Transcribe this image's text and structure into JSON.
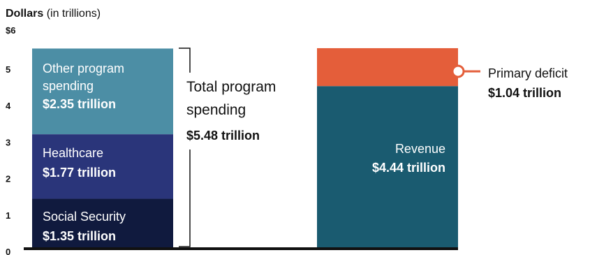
{
  "chart_data": {
    "type": "bar",
    "stacked": true,
    "y_axis": {
      "title_bold": "Dollars",
      "title_rest": " (in trillions)",
      "ticks": [
        {
          "value": 0,
          "label": "0"
        },
        {
          "value": 1,
          "label": "1"
        },
        {
          "value": 2,
          "label": "2"
        },
        {
          "value": 3,
          "label": "3"
        },
        {
          "value": 4,
          "label": "4"
        },
        {
          "value": 5,
          "label": "5"
        },
        {
          "value": 6,
          "label": "$6"
        }
      ],
      "ylim": [
        0,
        6
      ],
      "grid": false
    },
    "bars": [
      {
        "segments": [
          {
            "value": 1.35,
            "label": "Social Security",
            "value_label": "$1.35 trillion",
            "color": "#101a3e"
          },
          {
            "value": 1.77,
            "label": "Healthcare",
            "value_label": "$1.77 trillion",
            "color": "#2a357a"
          },
          {
            "value": 2.35,
            "label_lines": [
              "Other program",
              "spending"
            ],
            "value_label": "$2.35 trillion",
            "color": "#4c8ea5"
          }
        ],
        "bracket_label_lines": [
          "Total program",
          "spending"
        ],
        "bracket_value": "$5.48 trillion",
        "total": 5.48
      },
      {
        "segments": [
          {
            "value": 4.44,
            "label": "Revenue",
            "value_label": "$4.44 trillion",
            "color": "#1a5b70"
          },
          {
            "value": 1.04,
            "label": "Primary deficit",
            "value_label": "$1.04 trillion",
            "color": "#e45e3a",
            "callout": true
          }
        ],
        "total": 5.48
      }
    ]
  }
}
